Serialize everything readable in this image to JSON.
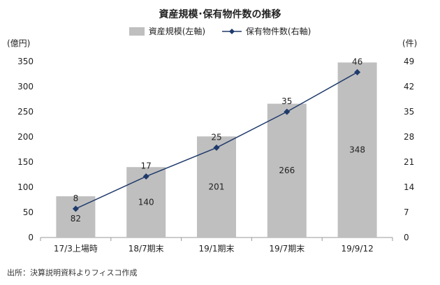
{
  "chart_data": {
    "type": "bar",
    "title": "資産規模･保有物件数の推移",
    "categories": [
      "17/3上場時",
      "18/7期末",
      "19/1期末",
      "19/7期末",
      "19/9/12"
    ],
    "series": [
      {
        "name": "資産規模(左軸)",
        "type": "bar",
        "axis": "left",
        "values": [
          82,
          140,
          201,
          266,
          348
        ],
        "color": "#bfbfbf"
      },
      {
        "name": "保有物件数(右軸)",
        "type": "line",
        "axis": "right",
        "values": [
          8,
          17,
          25,
          35,
          46
        ],
        "color": "#1f3a6b"
      }
    ],
    "left_axis": {
      "unit_label": "(億円)",
      "ylim": [
        0,
        350
      ],
      "ticks": [
        0,
        50,
        100,
        150,
        200,
        250,
        300,
        350
      ]
    },
    "right_axis": {
      "unit_label": "(件)",
      "ylim": [
        0,
        49
      ],
      "ticks": [
        0,
        7,
        14,
        21,
        28,
        35,
        42,
        49
      ]
    },
    "legend_position": "top-center",
    "grid": false
  },
  "source_note": "出所：決算説明資料よりフィスコ作成"
}
